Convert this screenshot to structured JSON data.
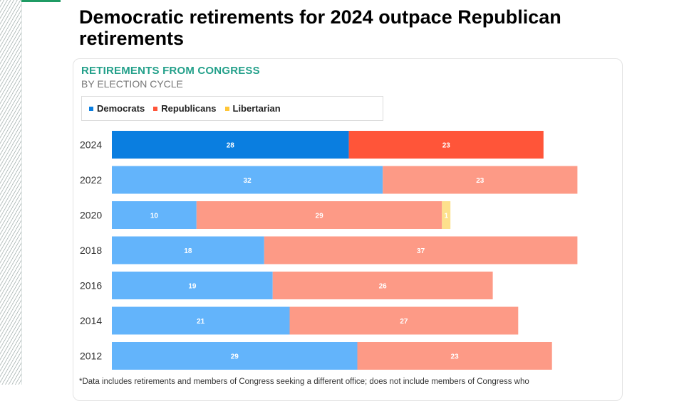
{
  "headline": "Democratic retirements for 2024 outpace Republican retirements",
  "footnote": "*Data includes retirements and members of Congress seeking a different office; does not include members of Congress who",
  "colors": {
    "accent": "#1f9b64",
    "title_teal": "#23a08a"
  },
  "chart_data": {
    "type": "bar",
    "orientation": "horizontal",
    "stacked": true,
    "title": "RETIREMENTS FROM CONGRESS",
    "subtitle": "BY ELECTION CYCLE",
    "categories": [
      "2024",
      "2022",
      "2020",
      "2018",
      "2016",
      "2014",
      "2012"
    ],
    "highlight_category": "2024",
    "xlim": [
      0,
      60
    ],
    "series": [
      {
        "name": "Democrats",
        "color": "#0a7ee0",
        "muted_color": "#63b4fb",
        "values": [
          28,
          32,
          10,
          18,
          19,
          21,
          29
        ]
      },
      {
        "name": "Republicans",
        "color": "#ff5539",
        "muted_color": "#fd9a86",
        "values": [
          23,
          23,
          29,
          37,
          26,
          27,
          23
        ]
      },
      {
        "name": "Libertarian",
        "color": "#ffc637",
        "muted_color": "#fde08c",
        "values": [
          0,
          0,
          1,
          0,
          0,
          0,
          0
        ]
      }
    ]
  }
}
